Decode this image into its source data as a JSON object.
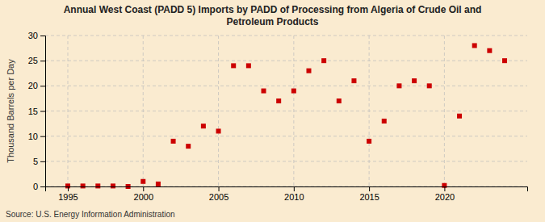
{
  "chart_data": {
    "type": "scatter",
    "title": "Annual West Coast (PADD 5) Imports by PADD of Processing from Algeria of Crude Oil and\nPetroleum Products",
    "ylabel": "Thousand Barrels per Day",
    "source": "Source: U.S. Energy Information Administration",
    "x": [
      1995,
      1996,
      1997,
      1998,
      1999,
      2000,
      2001,
      2002,
      2003,
      2004,
      2005,
      2006,
      2007,
      2008,
      2009,
      2010,
      2011,
      2012,
      2013,
      2014,
      2015,
      2016,
      2017,
      2018,
      2019,
      2020,
      2021,
      2022,
      2023,
      2024
    ],
    "values": [
      0.1,
      0.1,
      0.1,
      0.1,
      0.0,
      1.0,
      0.5,
      9.0,
      8.0,
      12.0,
      11.0,
      24.0,
      24.0,
      19.0,
      17.0,
      19.0,
      23.0,
      25.0,
      17.0,
      21.0,
      9.0,
      13.0,
      20.0,
      21.0,
      20.0,
      0.2,
      14.0,
      28.0,
      27.0,
      25.0
    ],
    "color": "#cc0000",
    "marker": "square",
    "xlim": [
      1993.5,
      2025.5
    ],
    "ylim": [
      0,
      30
    ],
    "xticks": [
      1995,
      2000,
      2005,
      2010,
      2015,
      2020
    ],
    "yticks": [
      0,
      5,
      10,
      15,
      20,
      25,
      30
    ],
    "grid": true
  }
}
